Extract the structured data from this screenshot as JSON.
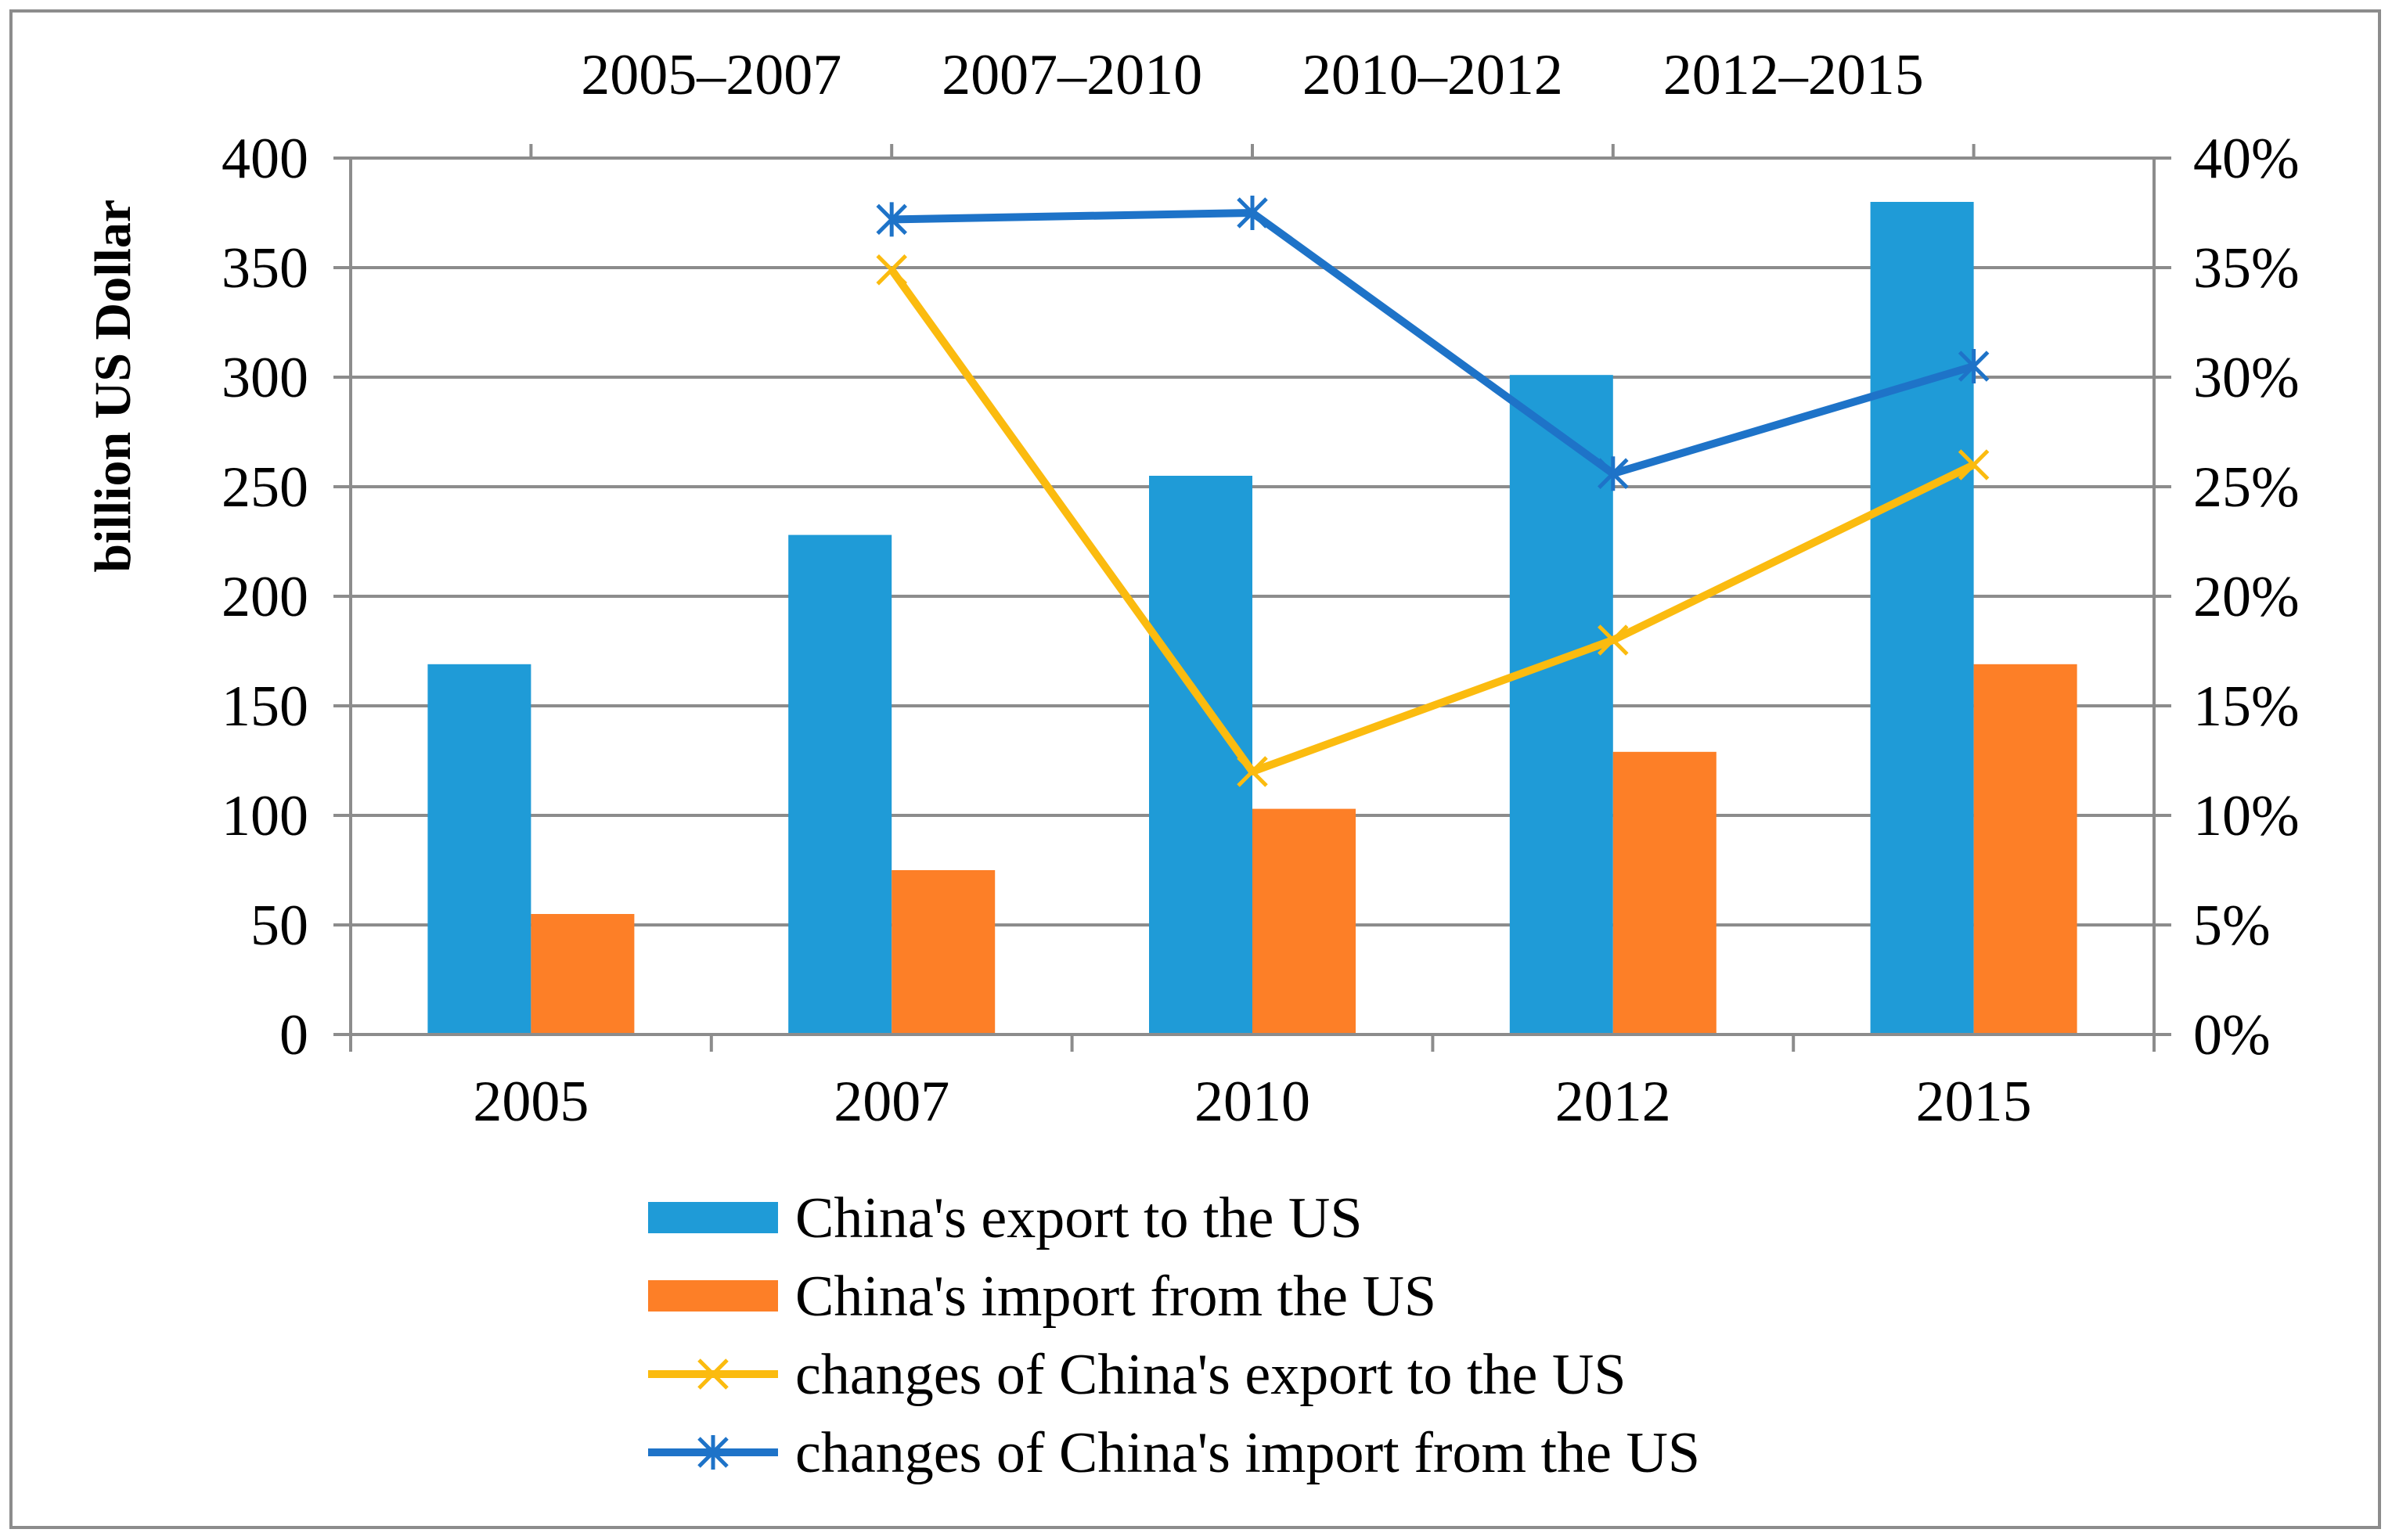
{
  "chart_data": {
    "type": "bar",
    "title": "",
    "categories": [
      "2005",
      "2007",
      "2010",
      "2012",
      "2015"
    ],
    "top_categories": [
      "2005–2007",
      "2007–2010",
      "2010–2012",
      "2012–2015"
    ],
    "xlabel": "",
    "ylabel": "billion US Dollar",
    "ylim": [
      0,
      400
    ],
    "yticks": [
      "0",
      "50",
      "100",
      "150",
      "200",
      "250",
      "300",
      "350",
      "400"
    ],
    "y2lim": [
      0,
      0.4
    ],
    "y2ticks": [
      "0%",
      "5%",
      "10%",
      "15%",
      "20%",
      "25%",
      "30%",
      "35%",
      "40%"
    ],
    "grid": true,
    "legend_position": "bottom",
    "series": [
      {
        "name": "China's export to the US",
        "kind": "bar",
        "axis": "left",
        "color": "#1f9bd7",
        "values": [
          169,
          228,
          255,
          301,
          380
        ]
      },
      {
        "name": "China's import from the US",
        "kind": "bar",
        "axis": "left",
        "color": "#fd7f27",
        "values": [
          55,
          75,
          103,
          129,
          169
        ]
      },
      {
        "name": "changes of China's export to the US",
        "kind": "line",
        "axis": "right",
        "marker": "x",
        "color": "#fbbb0f",
        "x": [
          "2007",
          "2010",
          "2012",
          "2015"
        ],
        "values": [
          0.349,
          0.12,
          0.18,
          0.26
        ]
      },
      {
        "name": "changes of China's import from the US",
        "kind": "line",
        "axis": "right",
        "marker": "star",
        "color": "#1e73c8",
        "x": [
          "2007",
          "2010",
          "2012",
          "2015"
        ],
        "values": [
          0.372,
          0.375,
          0.256,
          0.305
        ]
      }
    ]
  }
}
